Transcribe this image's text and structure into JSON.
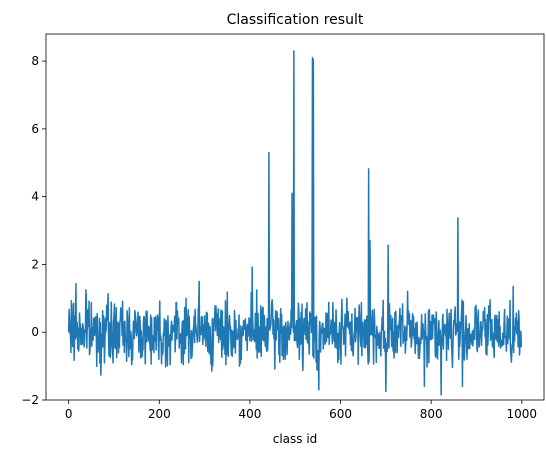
{
  "chart_data": {
    "type": "line",
    "title": "Classification result",
    "xlabel": "class id",
    "ylabel": "",
    "xlim": [
      -50,
      1049
    ],
    "ylim": [
      -2.0,
      8.8
    ],
    "xticks": [
      0,
      200,
      400,
      600,
      800,
      1000
    ],
    "yticks": [
      -2,
      0,
      2,
      4,
      6,
      8
    ],
    "grid": false,
    "legend": "none",
    "line_color": "#1f77b4",
    "series": [
      {
        "n_points": 1000,
        "x_start": 0,
        "x_step": 1,
        "noise_seed": 7,
        "noise_amplitude": 0.45,
        "noise_range": [
          -1.85,
          1.5
        ],
        "peaks": [
          {
            "x": 16,
            "y": 1.43
          },
          {
            "x": 38,
            "y": 1.25
          },
          {
            "x": 288,
            "y": 1.5
          },
          {
            "x": 405,
            "y": 1.92
          },
          {
            "x": 442,
            "y": 5.3
          },
          {
            "x": 493,
            "y": 4.1
          },
          {
            "x": 497,
            "y": 8.3
          },
          {
            "x": 538,
            "y": 8.1
          },
          {
            "x": 540,
            "y": 8.05
          },
          {
            "x": 662,
            "y": 4.82
          },
          {
            "x": 665,
            "y": 2.7
          },
          {
            "x": 705,
            "y": 2.57
          },
          {
            "x": 859,
            "y": 3.37
          },
          {
            "x": 981,
            "y": 1.35
          },
          {
            "x": 552,
            "y": -1.7
          },
          {
            "x": 700,
            "y": -1.75
          },
          {
            "x": 785,
            "y": -1.6
          },
          {
            "x": 822,
            "y": -1.85
          },
          {
            "x": 869,
            "y": -1.6
          }
        ]
      }
    ]
  }
}
